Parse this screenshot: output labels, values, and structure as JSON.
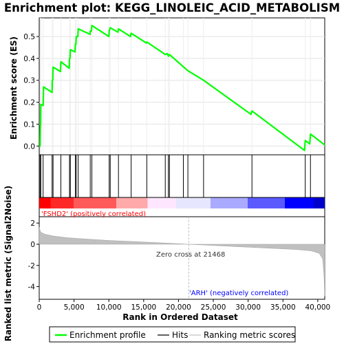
{
  "chart_data": [
    {
      "type": "line",
      "title": "Enrichment plot: KEGG_LINOLEIC_ACID_METABOLISM",
      "ylabel": "Enrichment score (ES)",
      "xlim": [
        0,
        41000
      ],
      "ylim": [
        -0.04,
        0.585
      ],
      "yticks": [
        "0.0",
        "0.1",
        "0.2",
        "0.3",
        "0.4",
        "0.5"
      ],
      "ytick_values": [
        0.0,
        0.1,
        0.2,
        0.3,
        0.4,
        0.5
      ],
      "grid": true,
      "series": [
        {
          "name": "Enrichment profile",
          "color": "#00ff00",
          "points": [
            [
              0,
              0.0
            ],
            [
              120,
              0.0
            ],
            [
              160,
              0.095
            ],
            [
              200,
              0.095
            ],
            [
              230,
              0.19
            ],
            [
              560,
              0.185
            ],
            [
              620,
              0.27
            ],
            [
              1850,
              0.245
            ],
            [
              1880,
              0.3
            ],
            [
              1950,
              0.3
            ],
            [
              1990,
              0.36
            ],
            [
              3050,
              0.34
            ],
            [
              3110,
              0.385
            ],
            [
              4320,
              0.355
            ],
            [
              4350,
              0.4
            ],
            [
              4430,
              0.4
            ],
            [
              4470,
              0.44
            ],
            [
              5150,
              0.43
            ],
            [
              5190,
              0.465
            ],
            [
              5280,
              0.465
            ],
            [
              5320,
              0.5
            ],
            [
              5550,
              0.5
            ],
            [
              5600,
              0.535
            ],
            [
              7300,
              0.51
            ],
            [
              7330,
              0.525
            ],
            [
              7500,
              0.525
            ],
            [
              7560,
              0.55
            ],
            [
              10000,
              0.5
            ],
            [
              10050,
              0.525
            ],
            [
              10200,
              0.54
            ],
            [
              11300,
              0.52
            ],
            [
              11380,
              0.535
            ],
            [
              13100,
              0.5
            ],
            [
              13200,
              0.515
            ],
            [
              15400,
              0.47
            ],
            [
              15450,
              0.475
            ],
            [
              18100,
              0.418
            ],
            [
              18400,
              0.422
            ],
            [
              18550,
              0.41
            ],
            [
              18700,
              0.418
            ],
            [
              21300,
              0.345
            ],
            [
              23600,
              0.3
            ],
            [
              30400,
              0.145
            ],
            [
              30550,
              0.16
            ],
            [
              38100,
              -0.02
            ],
            [
              38200,
              0.025
            ],
            [
              38850,
              0.01
            ],
            [
              38950,
              0.055
            ],
            [
              41000,
              0.005
            ]
          ]
        }
      ],
      "legend": [
        "Enrichment profile",
        "Hits",
        "Ranking metric scores"
      ],
      "legend_placement": "bottom"
    },
    {
      "type": "hits",
      "series_name": "Hits",
      "xlim": [
        0,
        41000
      ],
      "hit_positions": [
        120,
        230,
        560,
        1850,
        1990,
        3110,
        4350,
        4470,
        5190,
        5320,
        5600,
        7330,
        7560,
        10050,
        10200,
        11380,
        13200,
        15450,
        18100,
        18550,
        18700,
        20700,
        21350,
        23600,
        30550,
        38200,
        38950
      ],
      "colorbar_stops": [
        "#ff0000",
        "#ff2828",
        "#ff5a5a",
        "#ffaaaa",
        "#ffe6ff",
        "#e6e6ff",
        "#aaaaff",
        "#5a5aff",
        "#0000ff",
        "#0000cc"
      ],
      "colorbar_breaks": [
        0.0,
        0.04,
        0.12,
        0.27,
        0.38,
        0.48,
        0.6,
        0.73,
        0.86,
        0.96,
        1.0
      ]
    },
    {
      "type": "area",
      "series_name": "Ranking metric scores",
      "xlabel": "Rank in Ordered Dataset",
      "ylabel": "Ranked list metric (Signal2Noise)",
      "xlim": [
        0,
        41000
      ],
      "ylim": [
        -5.2,
        2.6
      ],
      "xticks": [
        "0",
        "5,000",
        "10,000",
        "15,000",
        "20,000",
        "25,000",
        "30,000",
        "35,000",
        "40,000"
      ],
      "xtick_values": [
        0,
        5000,
        10000,
        15000,
        20000,
        25000,
        30000,
        35000,
        40000
      ],
      "yticks": [
        "2",
        "0",
        "-2",
        "-4"
      ],
      "ytick_values": [
        2,
        0,
        -2,
        -4
      ],
      "points": [
        [
          0,
          1.6
        ],
        [
          200,
          1.15
        ],
        [
          800,
          0.95
        ],
        [
          2000,
          0.78
        ],
        [
          4000,
          0.62
        ],
        [
          7000,
          0.48
        ],
        [
          10000,
          0.36
        ],
        [
          14000,
          0.24
        ],
        [
          18000,
          0.12
        ],
        [
          21468,
          0.0
        ],
        [
          25000,
          -0.12
        ],
        [
          30000,
          -0.28
        ],
        [
          34000,
          -0.4
        ],
        [
          37000,
          -0.5
        ],
        [
          39000,
          -0.62
        ],
        [
          40200,
          -0.85
        ],
        [
          40700,
          -1.4
        ],
        [
          40900,
          -3.0
        ],
        [
          41000,
          -4.9
        ]
      ],
      "zero_cross": 21468,
      "annotations": {
        "zero_cross": "Zero cross at 21468",
        "positive": "'FSHD2' (positively correlated)",
        "negative": "'ARH' (negatively correlated)"
      },
      "colors": {
        "fill": "#c0c0c0",
        "positive_label": "#ff0000",
        "negative_label": "#0000ff",
        "zero_line": "#bbbbcc"
      }
    }
  ]
}
